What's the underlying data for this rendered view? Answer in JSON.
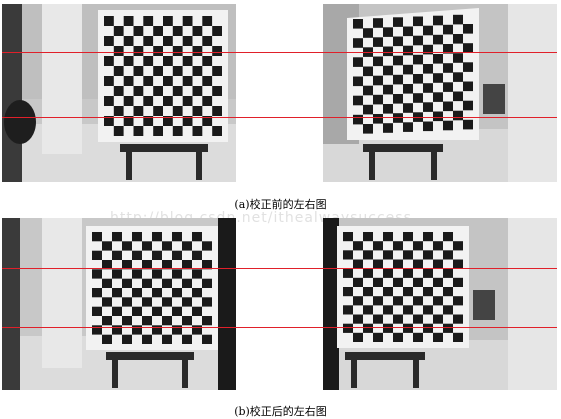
{
  "figure": {
    "caption_top": "(a)校正前的左右图",
    "caption_bottom": "(b)校正后的左右图",
    "watermark": "http://blog.csdn.net/ithealwaysuccess",
    "colors": {
      "epipolar_line": "#e0202a",
      "floor": "#d8d8d8",
      "wall": "#bdbdbd",
      "divider_gray": "#b4b4b4",
      "black_square": "#1a1a1a",
      "white_square": "#f2f2f2"
    }
  }
}
